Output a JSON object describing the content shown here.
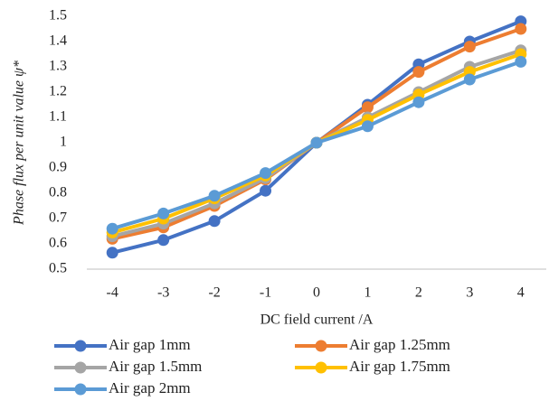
{
  "chart_data": {
    "type": "line",
    "x_label": "DC field current /A",
    "y_label": "Phase flux per unit value ψ*",
    "x": [
      -4,
      -3,
      -2,
      -1,
      0,
      1,
      2,
      3,
      4
    ],
    "xlim": [
      -4.5,
      4.5
    ],
    "ylim": [
      0.5,
      1.5
    ],
    "yticks": [
      0.5,
      0.6,
      0.7,
      0.8,
      0.9,
      1,
      1.1,
      1.2,
      1.3,
      1.4,
      1.5
    ],
    "grid": false,
    "legend": "bottom",
    "series": [
      {
        "name": "Air gap 1mm",
        "color": "#4472c4",
        "values": [
          0.565,
          0.615,
          0.69,
          0.81,
          1.0,
          1.15,
          1.31,
          1.4,
          1.48
        ]
      },
      {
        "name": "Air gap 1.25mm",
        "color": "#ed7d31",
        "values": [
          0.62,
          0.665,
          0.75,
          0.855,
          1.0,
          1.14,
          1.28,
          1.38,
          1.45
        ]
      },
      {
        "name": "Air gap 1.5mm",
        "color": "#a5a5a5",
        "values": [
          0.63,
          0.68,
          0.76,
          0.86,
          1.0,
          1.1,
          1.2,
          1.3,
          1.365
        ]
      },
      {
        "name": "Air gap 1.75mm",
        "color": "#ffc000",
        "values": [
          0.645,
          0.7,
          0.78,
          0.87,
          1.0,
          1.09,
          1.19,
          1.28,
          1.35
        ]
      },
      {
        "name": "Air gap 2mm",
        "color": "#5b9bd5",
        "values": [
          0.66,
          0.72,
          0.79,
          0.88,
          1.0,
          1.065,
          1.16,
          1.25,
          1.32
        ]
      }
    ]
  }
}
